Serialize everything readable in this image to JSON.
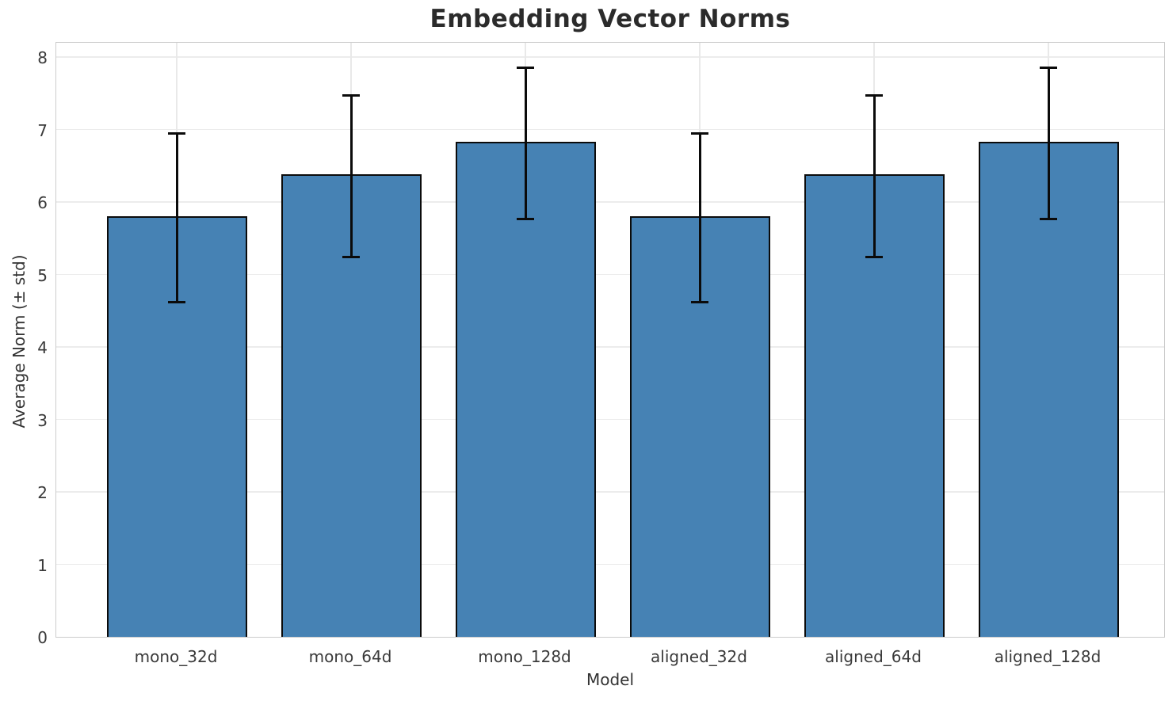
{
  "chart_data": {
    "type": "bar",
    "title": "Embedding Vector Norms",
    "xlabel": "Model",
    "ylabel": "Average Norm (± std)",
    "categories": [
      "mono_32d",
      "mono_64d",
      "mono_128d",
      "aligned_32d",
      "aligned_64d",
      "aligned_128d"
    ],
    "values": [
      5.8,
      6.38,
      6.83,
      5.8,
      6.38,
      6.83
    ],
    "errors": [
      1.18,
      1.13,
      1.06,
      1.18,
      1.13,
      1.06
    ],
    "yticks": [
      0,
      1,
      2,
      3,
      4,
      5,
      6,
      7,
      8
    ],
    "ylim": [
      0,
      8.22
    ],
    "grid": true,
    "legend": "none",
    "bar_color": "#4682B4",
    "bar_edge_color": "#0b0b0b",
    "error_color": "#0b0b0b",
    "grid_color": "#ececec",
    "spine_color": "#cccccc",
    "title_color": "#2b2b2b",
    "tick_color": "#3a3a3a"
  }
}
